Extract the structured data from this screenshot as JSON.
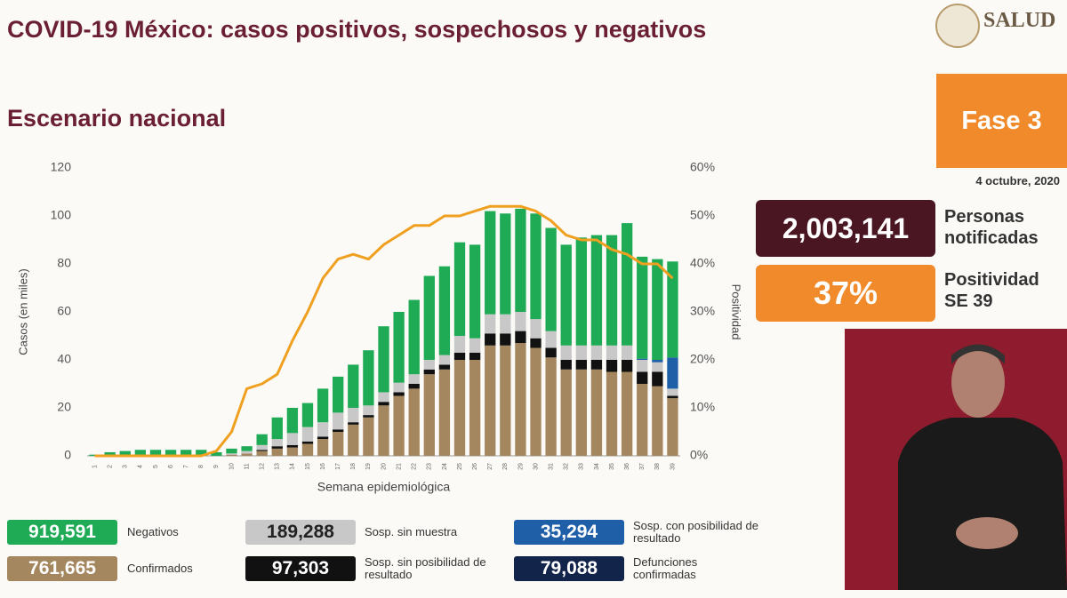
{
  "header": {
    "title": "COVID-19 México: casos positivos, sospechosos y negativos",
    "logo": "SALUD",
    "subtitle": "Escenario nacional"
  },
  "side": {
    "phase": "Fase 3",
    "date": "4 octubre, 2020",
    "notified_value": "2,003,141",
    "notified_label": "Personas notificadas",
    "positivity_value": "37%",
    "positivity_label": "Positividad SE 39"
  },
  "chart_data": {
    "type": "bar",
    "stacked": true,
    "grid": false,
    "ylabel": "Casos (en miles)",
    "y2label": "Positividad",
    "xlabel": "Semana epidemiológica",
    "categories": [
      "1",
      "2",
      "3",
      "4",
      "5",
      "6",
      "7",
      "8",
      "9",
      "10",
      "11",
      "12",
      "13",
      "14",
      "15",
      "16",
      "17",
      "18",
      "19",
      "20",
      "21",
      "22",
      "23",
      "24",
      "25",
      "26",
      "27",
      "28",
      "29",
      "30",
      "31",
      "32",
      "33",
      "34",
      "35",
      "36",
      "37",
      "38",
      "39"
    ],
    "ylim": [
      0,
      120
    ],
    "yticks": [
      0,
      20,
      40,
      60,
      80,
      100,
      120
    ],
    "y2lim": [
      0,
      60
    ],
    "y2ticks": [
      {
        "value": 0,
        "label": "0%"
      },
      {
        "value": 10,
        "label": "10%"
      },
      {
        "value": 20,
        "label": "20%"
      },
      {
        "value": 30,
        "label": "30%"
      },
      {
        "value": 40,
        "label": "40%"
      },
      {
        "value": 50,
        "label": "50%"
      },
      {
        "value": 60,
        "label": "60%"
      }
    ],
    "series": [
      {
        "name": "Confirmados",
        "total": "761,665",
        "color": "#a5875f",
        "values": [
          0,
          0,
          0,
          0,
          0,
          0,
          0,
          0,
          0,
          0.5,
          1,
          2,
          3,
          3.5,
          5,
          7,
          10,
          13,
          16,
          21,
          25,
          28,
          34,
          36,
          40,
          40,
          46,
          46,
          47,
          45,
          41,
          36,
          36,
          36,
          35,
          35,
          30,
          29,
          24
        ]
      },
      {
        "name": "Sosp. sin posibilidad de resultado",
        "total": "97,303",
        "color": "#111111",
        "values": [
          0,
          0,
          0,
          0,
          0,
          0,
          0,
          0,
          0,
          0,
          0,
          0.5,
          1,
          1,
          1,
          1,
          1,
          1,
          1,
          1.5,
          1.5,
          2,
          2,
          2,
          3,
          3,
          5,
          5,
          5,
          4,
          4,
          4,
          4,
          4,
          5,
          5,
          5,
          6,
          1
        ]
      },
      {
        "name": "Sosp. sin muestra",
        "total": "189,288",
        "color": "#c8c8c8",
        "values": [
          0,
          0,
          0,
          0,
          0,
          0,
          0,
          0,
          0,
          0.5,
          1,
          2,
          3,
          5,
          6,
          6,
          7,
          6,
          4,
          4,
          4,
          4,
          4,
          4,
          7,
          6,
          8,
          8,
          8,
          8,
          7,
          6,
          6,
          6,
          6,
          6,
          5,
          4,
          3
        ]
      },
      {
        "name": "Sosp. con posibilidad de resultado",
        "total": "35,294",
        "color": "#1f5fa8",
        "values": [
          0,
          0,
          0,
          0,
          0,
          0,
          0,
          0,
          0,
          0,
          0,
          0,
          0,
          0,
          0,
          0,
          0,
          0,
          0,
          0,
          0,
          0,
          0,
          0,
          0,
          0,
          0,
          0,
          0,
          0,
          0,
          0,
          0,
          0,
          0,
          0,
          0.5,
          1,
          13
        ]
      },
      {
        "name": "Negativos",
        "total": "919,591",
        "color": "#1faa55",
        "values": [
          0.5,
          1.5,
          2,
          2.5,
          2.5,
          2.5,
          2.5,
          2.5,
          1.5,
          2,
          2,
          4.5,
          9,
          10.5,
          10,
          14,
          15,
          18,
          23,
          27.5,
          29.5,
          31,
          35,
          37,
          39,
          39,
          43,
          42,
          43,
          44,
          43,
          42,
          45,
          46,
          46,
          51,
          42.5,
          42,
          40
        ]
      },
      {
        "type": "line",
        "axis": "y2",
        "color": "#f0a020",
        "values": [
          0,
          0,
          0,
          0,
          0,
          0,
          0,
          0,
          1,
          5,
          14,
          15,
          17,
          24,
          30,
          37,
          41,
          42,
          41,
          44,
          46,
          48,
          48,
          50,
          50,
          51,
          52,
          52,
          52,
          51,
          49,
          46,
          45,
          45,
          43,
          42,
          40,
          40,
          37
        ]
      }
    ],
    "deaths": {
      "name": "Defunciones confirmadas",
      "total": "79,088",
      "color": "#13244a"
    }
  }
}
